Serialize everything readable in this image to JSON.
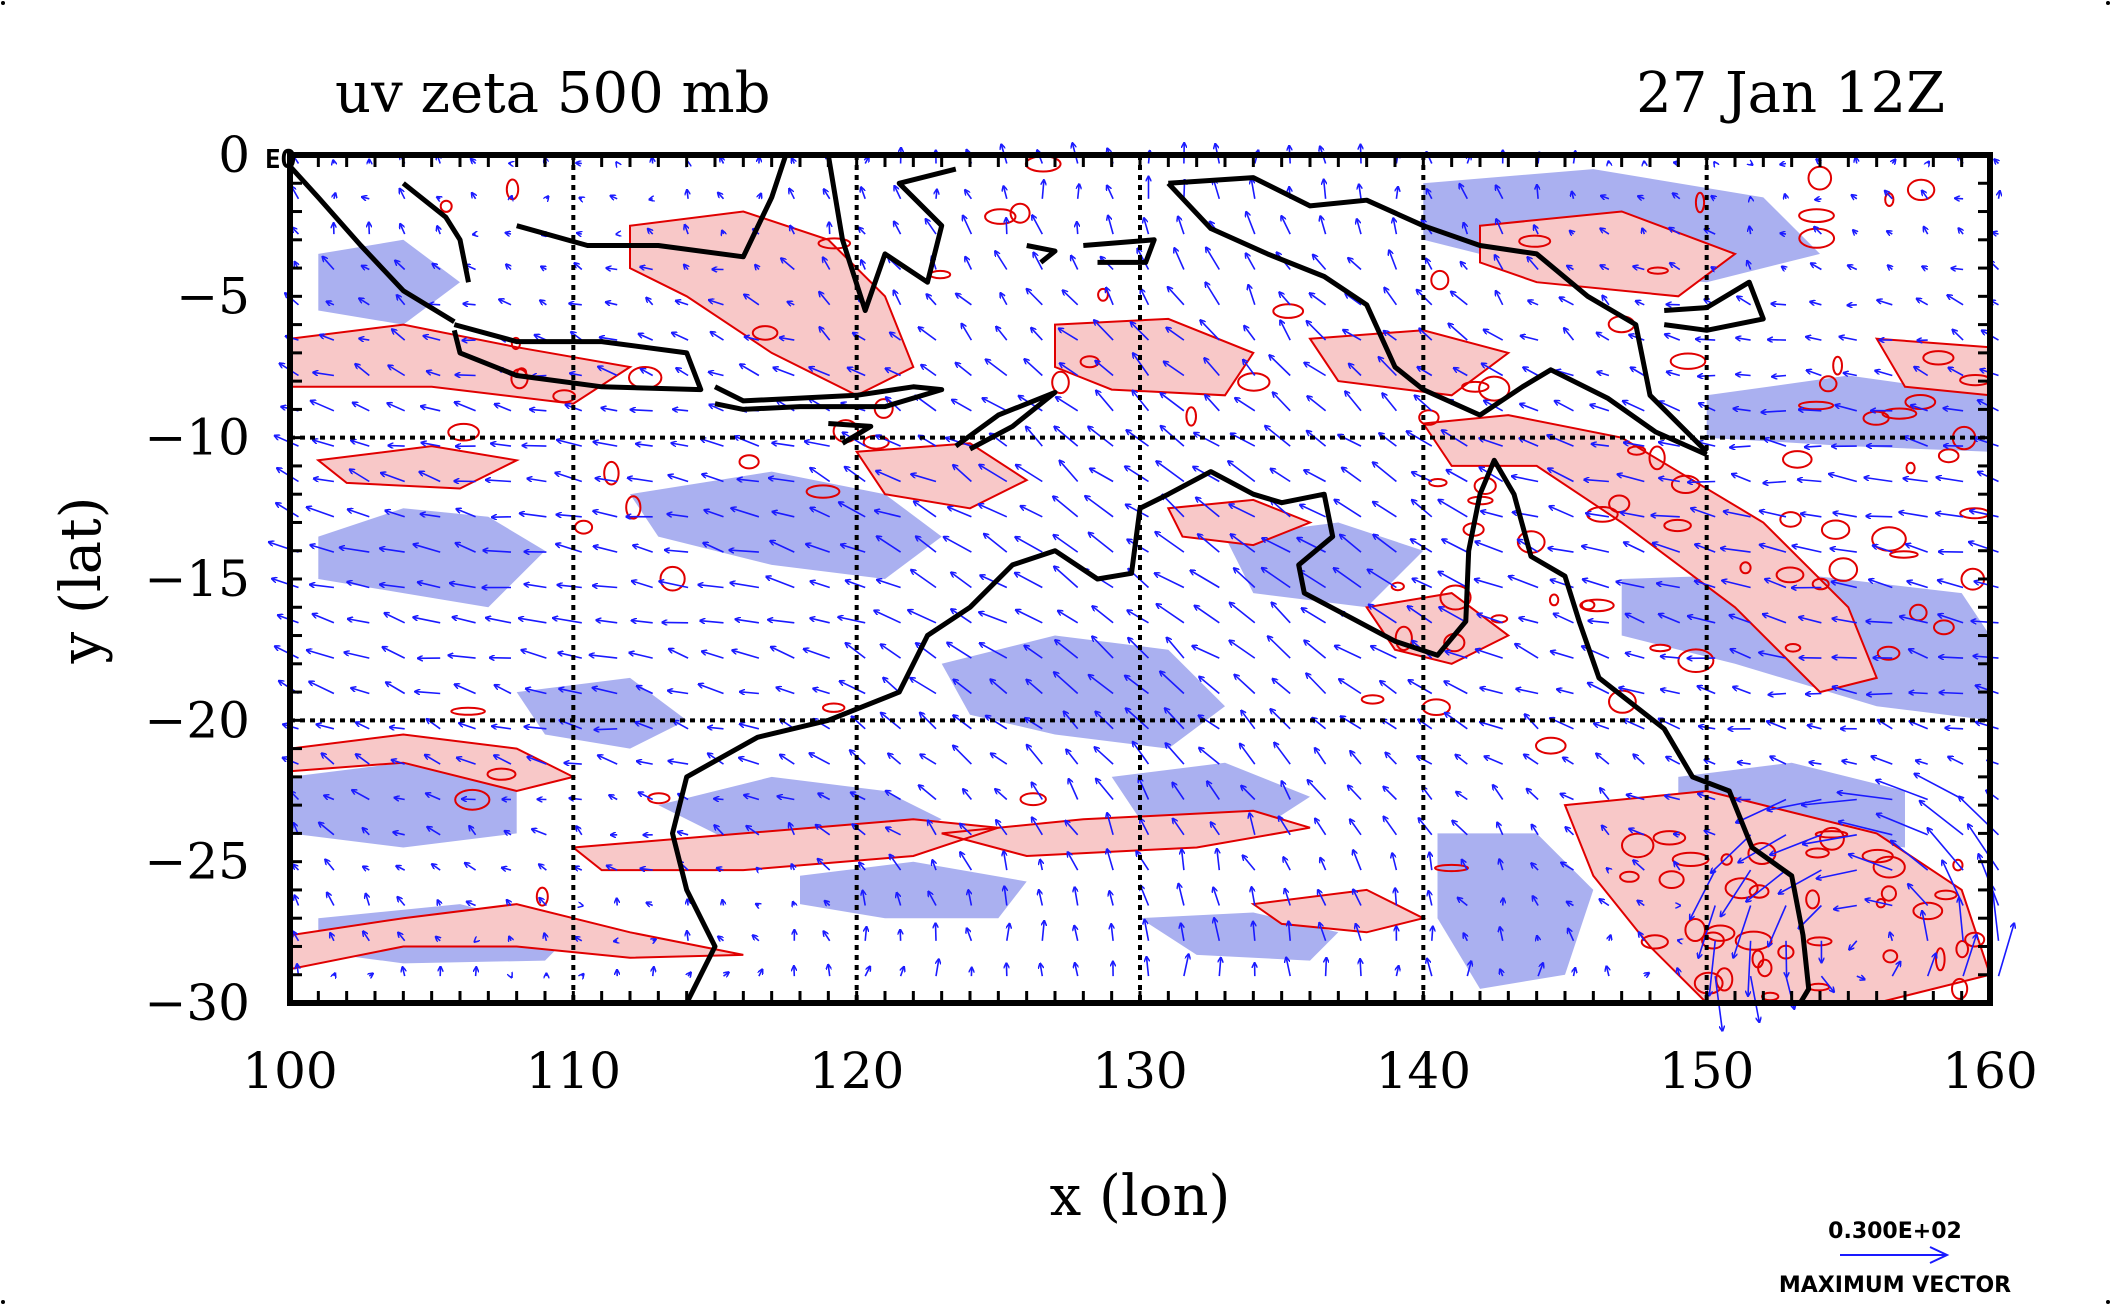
{
  "chart_data": {
    "type": "map-vector-field",
    "title_left": "uv zeta 500 mb",
    "title_right": "27 Jan 12Z",
    "xlabel": "x (lon)",
    "ylabel": "y (lat)",
    "equator_label": "EQ",
    "xlim": [
      100,
      160
    ],
    "ylim": [
      -30,
      0
    ],
    "xticks": [
      "100",
      "110",
      "120",
      "130",
      "140",
      "150",
      "160"
    ],
    "yticks": [
      "0",
      "−5",
      "−10",
      "−15",
      "−20",
      "−25",
      "−30"
    ],
    "xtick_values": [
      100,
      110,
      120,
      130,
      140,
      150,
      160
    ],
    "ytick_values": [
      0,
      -5,
      -10,
      -15,
      -20,
      -25,
      -30
    ],
    "grid": true,
    "grid_lines_lon": [
      110,
      120,
      130,
      140,
      150
    ],
    "grid_lines_lat": [
      -10,
      -20
    ],
    "legend": {
      "value_text": "0.300E+02",
      "caption": "MAXIMUM VECTOR"
    },
    "colors": {
      "vectors": "#1a1aff",
      "positive_contour": "#e00000",
      "positive_fill": "#f8c8c8",
      "negative_fill": "#aab0f0",
      "coastline": "#000000",
      "grid": "#000000"
    },
    "series": [
      {
        "kind": "wind-vectors",
        "spacing_deg": 1.25
      },
      {
        "kind": "vorticity-positive-contours"
      },
      {
        "kind": "vorticity-negative-shading"
      },
      {
        "kind": "coastline"
      }
    ]
  }
}
